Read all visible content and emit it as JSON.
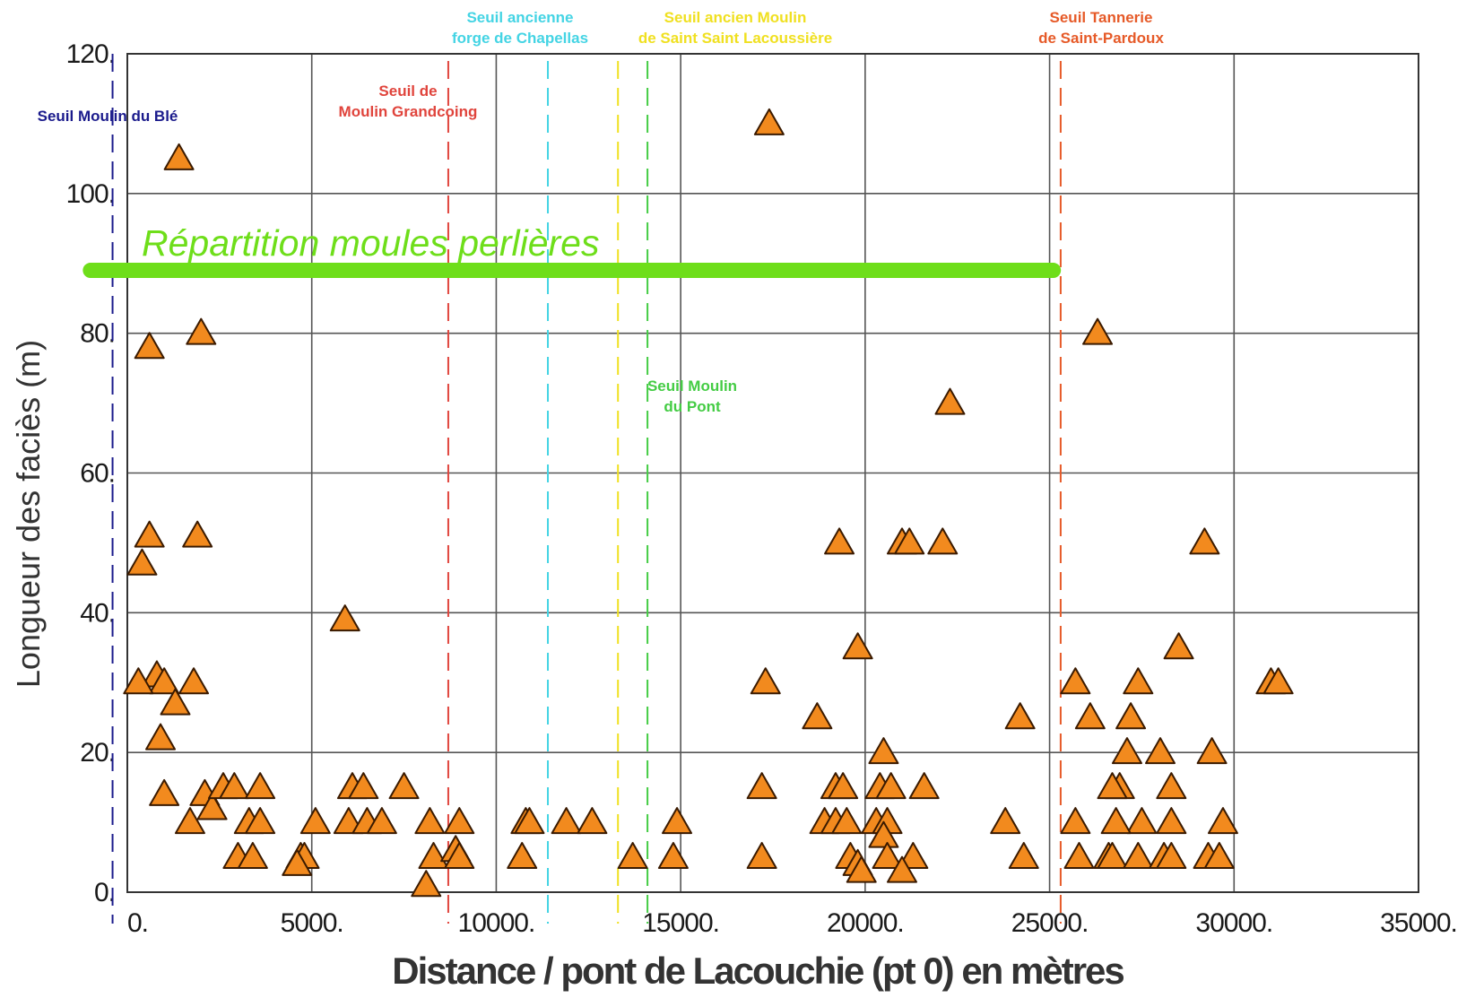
{
  "chart_data": {
    "type": "scatter",
    "xlabel": "Distance / pont de Lacouchie (pt 0) en mètres",
    "ylabel": "Longueur des faciès (m)",
    "xlim": [
      0,
      35000
    ],
    "ylim": [
      0,
      120
    ],
    "x_ticks": [
      0,
      5000,
      10000,
      15000,
      20000,
      25000,
      30000,
      35000
    ],
    "x_tick_labels": [
      "0.",
      "5000.",
      "10000.",
      "15000.",
      "20000.",
      "25000.",
      "30000.",
      "35000."
    ],
    "y_ticks": [
      0,
      20,
      40,
      60,
      80,
      100,
      120
    ],
    "y_tick_labels": [
      "0.",
      "20.",
      "40.",
      "60.",
      "80.",
      "100.",
      "120."
    ],
    "grid": true,
    "marker": "triangle",
    "marker_color": "#f28a1e",
    "thresholds": [
      {
        "x": -400,
        "label": [
          "Seuil Moulin du Blé"
        ],
        "color": "#1b1b8c"
      },
      {
        "x": 8700,
        "label": [
          "Seuil de",
          "Moulin Grandcoing"
        ],
        "color": "#e0443c"
      },
      {
        "x": 11400,
        "label": [
          "Seuil ancienne",
          "forge de Chapellas"
        ],
        "color": "#44d4e4"
      },
      {
        "x": 13300,
        "label": [
          "Seuil ancien Moulin",
          "de Saint Saint Lacoussière"
        ],
        "color": "#f0e020"
      },
      {
        "x": 14100,
        "label": [
          "Seuil Moulin",
          "du Pont"
        ],
        "color": "#44cc44"
      },
      {
        "x": 25300,
        "label": [
          "Seuil Tannerie",
          "de Saint-Pardoux"
        ],
        "color": "#e65a28"
      }
    ],
    "band": {
      "label": "Répartition moules perlières",
      "x_start": -1000,
      "x_end": 25100,
      "y": 89,
      "color": "#6ede1a"
    },
    "points": [
      [
        1400,
        105
      ],
      [
        2000,
        80
      ],
      [
        600,
        78
      ],
      [
        1900,
        51
      ],
      [
        600,
        51
      ],
      [
        400,
        47
      ],
      [
        800,
        31
      ],
      [
        1000,
        30
      ],
      [
        1800,
        30
      ],
      [
        300,
        30
      ],
      [
        1300,
        27
      ],
      [
        900,
        22
      ],
      [
        1000,
        14
      ],
      [
        2100,
        14
      ],
      [
        2300,
        12
      ],
      [
        1700,
        10
      ],
      [
        2600,
        15
      ],
      [
        2900,
        15
      ],
      [
        3600,
        15
      ],
      [
        3300,
        10
      ],
      [
        3600,
        10
      ],
      [
        3000,
        5
      ],
      [
        3400,
        5
      ],
      [
        5100,
        10
      ],
      [
        4700,
        5
      ],
      [
        4800,
        5
      ],
      [
        4600,
        4
      ],
      [
        5900,
        39
      ],
      [
        6100,
        15
      ],
      [
        6400,
        15
      ],
      [
        6000,
        10
      ],
      [
        6500,
        10
      ],
      [
        6900,
        10
      ],
      [
        7500,
        15
      ],
      [
        8200,
        10
      ],
      [
        8300,
        5
      ],
      [
        8100,
        1
      ],
      [
        9000,
        10
      ],
      [
        8900,
        6
      ],
      [
        9000,
        5
      ],
      [
        10800,
        10
      ],
      [
        10900,
        10
      ],
      [
        10700,
        5
      ],
      [
        11900,
        10
      ],
      [
        12600,
        10
      ],
      [
        13700,
        5
      ],
      [
        14900,
        10
      ],
      [
        14800,
        5
      ],
      [
        17400,
        110
      ],
      [
        17300,
        30
      ],
      [
        17200,
        15
      ],
      [
        17200,
        5
      ],
      [
        18700,
        25
      ],
      [
        19300,
        50
      ],
      [
        19800,
        35
      ],
      [
        19200,
        15
      ],
      [
        19400,
        15
      ],
      [
        18900,
        10
      ],
      [
        19200,
        10
      ],
      [
        19500,
        10
      ],
      [
        19600,
        5
      ],
      [
        19800,
        4
      ],
      [
        19900,
        3
      ],
      [
        20500,
        20
      ],
      [
        20400,
        15
      ],
      [
        20700,
        15
      ],
      [
        20300,
        10
      ],
      [
        20600,
        10
      ],
      [
        20500,
        8
      ],
      [
        20600,
        5
      ],
      [
        21000,
        50
      ],
      [
        21200,
        50
      ],
      [
        21600,
        15
      ],
      [
        21300,
        5
      ],
      [
        21000,
        3
      ],
      [
        22100,
        50
      ],
      [
        22300,
        70
      ],
      [
        23800,
        10
      ],
      [
        24200,
        25
      ],
      [
        24300,
        5
      ],
      [
        26300,
        80
      ],
      [
        25700,
        30
      ],
      [
        26100,
        25
      ],
      [
        25700,
        10
      ],
      [
        25800,
        5
      ],
      [
        27400,
        30
      ],
      [
        27200,
        25
      ],
      [
        27100,
        20
      ],
      [
        26900,
        15
      ],
      [
        26700,
        15
      ],
      [
        27500,
        10
      ],
      [
        26800,
        10
      ],
      [
        26600,
        5
      ],
      [
        26700,
        5
      ],
      [
        27400,
        5
      ],
      [
        28500,
        35
      ],
      [
        28000,
        20
      ],
      [
        28300,
        15
      ],
      [
        28300,
        10
      ],
      [
        28100,
        5
      ],
      [
        28300,
        5
      ],
      [
        29200,
        50
      ],
      [
        29400,
        20
      ],
      [
        29700,
        10
      ],
      [
        29300,
        5
      ],
      [
        29600,
        5
      ],
      [
        31000,
        30
      ],
      [
        31200,
        30
      ]
    ]
  }
}
